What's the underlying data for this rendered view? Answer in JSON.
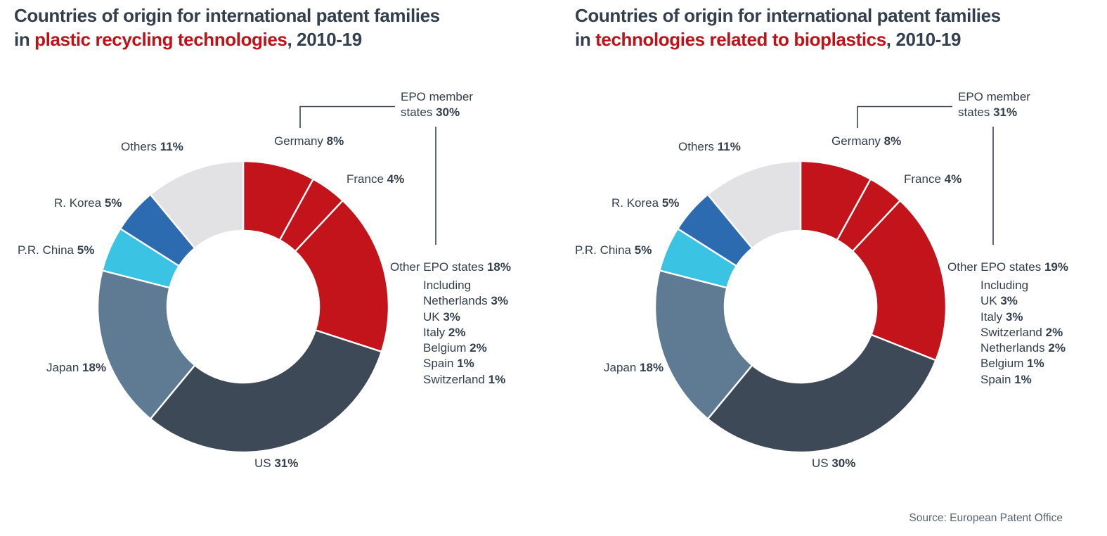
{
  "page": {
    "background": "#ffffff"
  },
  "source": "Source: European Patent Office",
  "colors": {
    "title_text": "#333f4d",
    "title_highlight": "#bf1118",
    "label_text": "#333f4d",
    "callout_line": "#3a4450",
    "source_text": "#5a636e",
    "segment_divider": "#ffffff",
    "epo_red": "#c3141b",
    "us_dark_slate": "#3d4957",
    "japan_steel_blue": "#5e7b93",
    "china_cyan": "#3ac3e2",
    "korea_blue": "#2d6bb1",
    "others_gray": "#e2e2e4"
  },
  "charts": [
    {
      "title_line1": "Countries of origin for international patent families",
      "title_line2_prefix": "in ",
      "title_line2_highlight": "plastic recycling technologies",
      "title_line2_suffix": ", 2010-19"
    },
    {
      "title_line1": "Countries of origin for international patent families",
      "title_line2_prefix": "in ",
      "title_line2_highlight": "technologies related to bioplastics",
      "title_line2_suffix": ", 2010-19"
    }
  ],
  "chart_data": [
    {
      "type": "pie",
      "subtype": "donut",
      "title": "Countries of origin for international patent families in plastic recycling technologies, 2010-19",
      "units": "%",
      "segments": [
        {
          "label": "Germany",
          "value": 8,
          "color": "#c3141b",
          "group": "EPO member states"
        },
        {
          "label": "France",
          "value": 4,
          "color": "#c3141b",
          "group": "EPO member states"
        },
        {
          "label": "Other EPO states",
          "value": 18,
          "color": "#c3141b",
          "group": "EPO member states"
        },
        {
          "label": "US",
          "value": 31,
          "color": "#3d4957"
        },
        {
          "label": "Japan",
          "value": 18,
          "color": "#5e7b93"
        },
        {
          "label": "P.R. China",
          "value": 5,
          "color": "#3ac3e2"
        },
        {
          "label": "R. Korea",
          "value": 5,
          "color": "#2d6bb1"
        },
        {
          "label": "Others",
          "value": 11,
          "color": "#e2e2e4"
        }
      ],
      "group_callout": {
        "line1": "EPO member",
        "line2_prefix": "states ",
        "value": "30%"
      },
      "breakdown": {
        "heading": "Including",
        "items": [
          {
            "label": "Netherlands",
            "value": "3%"
          },
          {
            "label": "UK",
            "value": "3%"
          },
          {
            "label": "Italy",
            "value": "2%"
          },
          {
            "label": "Belgium",
            "value": "2%"
          },
          {
            "label": "Spain",
            "value": "1%"
          },
          {
            "label": "Switzerland",
            "value": "1%"
          }
        ]
      }
    },
    {
      "type": "pie",
      "subtype": "donut",
      "title": "Countries of origin for international patent families in technologies related to bioplastics, 2010-19",
      "units": "%",
      "segments": [
        {
          "label": "Germany",
          "value": 8,
          "color": "#c3141b",
          "group": "EPO member states"
        },
        {
          "label": "France",
          "value": 4,
          "color": "#c3141b",
          "group": "EPO member states"
        },
        {
          "label": "Other EPO states",
          "value": 19,
          "color": "#c3141b",
          "group": "EPO member states"
        },
        {
          "label": "US",
          "value": 30,
          "color": "#3d4957"
        },
        {
          "label": "Japan",
          "value": 18,
          "color": "#5e7b93"
        },
        {
          "label": "P.R. China",
          "value": 5,
          "color": "#3ac3e2"
        },
        {
          "label": "R. Korea",
          "value": 5,
          "color": "#2d6bb1"
        },
        {
          "label": "Others",
          "value": 11,
          "color": "#e2e2e4"
        }
      ],
      "group_callout": {
        "line1": "EPO member",
        "line2_prefix": "states ",
        "value": "31%"
      },
      "breakdown": {
        "heading": "Including",
        "items": [
          {
            "label": "UK",
            "value": "3%"
          },
          {
            "label": "Italy",
            "value": "3%"
          },
          {
            "label": "Switzerland",
            "value": "2%"
          },
          {
            "label": "Netherlands",
            "value": "2%"
          },
          {
            "label": "Belgium",
            "value": "1%"
          },
          {
            "label": "Spain",
            "value": "1%"
          }
        ]
      }
    }
  ]
}
